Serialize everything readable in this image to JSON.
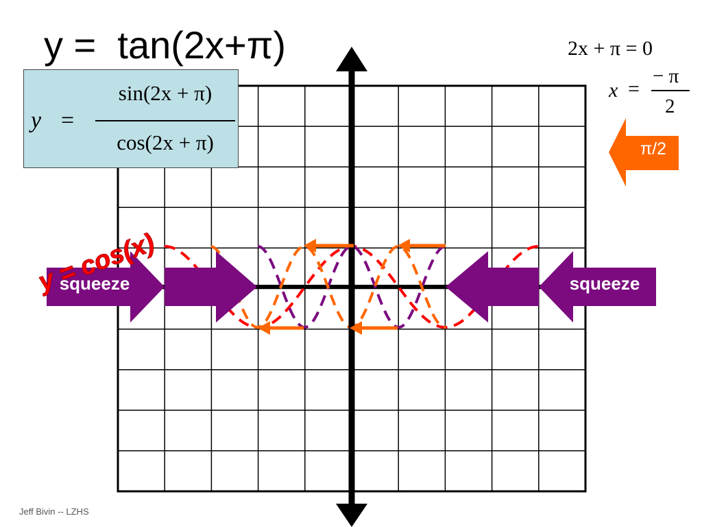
{
  "title": "y =  tan(2x+π)",
  "formula": {
    "lhs": "y",
    "equals": "=",
    "numerator": "sin(2x + π)",
    "denominator": "cos(2x + π)"
  },
  "solve": {
    "line1": "2x + π = 0",
    "line2_lhs": "x",
    "line2_eq": "=",
    "line2_num": "− π",
    "line2_den": "2"
  },
  "shift_label": "π/2",
  "squeeze_label": "squeeze",
  "curve_label": "y = cos(x)",
  "footer": "Jeff Bivin -- LZHS",
  "colors": {
    "red_curve": "#ff0000",
    "purple": "#7b0b7f",
    "orange": "#ff6600",
    "box_fill": "#bde0e6"
  }
}
